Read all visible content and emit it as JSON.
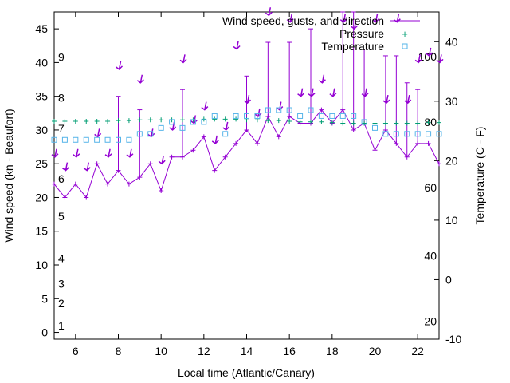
{
  "chart_data": {
    "type": "line",
    "title": "",
    "xlabel": "Local time (Atlantic/Canary)",
    "ylabel": "Wind speed (kn - Beaufort)",
    "y2label": "Temperature (C - F)",
    "xlim": [
      5,
      23
    ],
    "ylim": [
      -1,
      47.5
    ],
    "y2lim": [
      -10,
      45
    ],
    "x_ticks": [
      "6",
      "8",
      "10",
      "12",
      "14",
      "16",
      "18",
      "20",
      "22"
    ],
    "y_ticks": [
      "0",
      "5",
      "10",
      "15",
      "20",
      "25",
      "30",
      "35",
      "40",
      "45"
    ],
    "y2_ticks": [
      "-10",
      "0",
      "10",
      "20",
      "30",
      "40"
    ],
    "beaufort_labels": [
      {
        "text": "1",
        "y": 1
      },
      {
        "text": "2",
        "y": 4.3
      },
      {
        "text": "3",
        "y": 7.2
      },
      {
        "text": "4",
        "y": 11
      },
      {
        "text": "5",
        "y": 17.2
      },
      {
        "text": "6",
        "y": 22.8
      },
      {
        "text": "7",
        "y": 30.2
      },
      {
        "text": "8",
        "y": 34.8
      },
      {
        "text": "9",
        "y": 40.8
      }
    ],
    "fahrenheit_labels": [
      {
        "text": "20",
        "y": -7
      },
      {
        "text": "40",
        "y": 4
      },
      {
        "text": "60",
        "y": 15.5
      },
      {
        "text": "80",
        "y": 26.5
      },
      {
        "text": "100",
        "y": 37.5
      }
    ],
    "legend": {
      "position": "top-right",
      "entries": [
        "Wind speed, gusts, and direction",
        "Pressure",
        "Temperature"
      ]
    },
    "colors": {
      "wind": "#9400d3",
      "pressure": "#009e73",
      "temperature": "#56b4e9"
    },
    "series": [
      {
        "name": "Wind speed, gusts, and direction",
        "x": [
          5,
          5.5,
          6,
          6.5,
          7,
          7.5,
          8,
          8.5,
          9,
          9.5,
          10,
          10.5,
          11,
          11.5,
          12,
          12.5,
          13,
          13.5,
          14,
          14.5,
          15,
          15.5,
          16,
          16.5,
          17,
          17.5,
          18,
          18.5,
          19,
          19.5,
          20,
          20.5,
          21,
          21.5,
          22,
          22.5,
          23
        ],
        "values": [
          22,
          20,
          22,
          20,
          25,
          22,
          24,
          22,
          23,
          25,
          21,
          26,
          26,
          27,
          29,
          24,
          26,
          28,
          30,
          28,
          32,
          29,
          32,
          31,
          31,
          33,
          31,
          33,
          30,
          31,
          27,
          30,
          28,
          26,
          28,
          28,
          25
        ],
        "gusts": [
          null,
          null,
          null,
          null,
          null,
          null,
          35,
          null,
          33,
          null,
          null,
          null,
          36,
          null,
          null,
          null,
          null,
          null,
          38,
          null,
          43,
          null,
          43,
          null,
          45,
          null,
          null,
          48,
          48,
          42,
          42,
          41,
          41,
          37,
          36,
          null,
          null
        ],
        "direction_labels_x": [
          5,
          5.5,
          6,
          6.5,
          7,
          7.5,
          8,
          8.5,
          9,
          9.5,
          10,
          10.5,
          11,
          11.5,
          12,
          12.5,
          13,
          13.5,
          14,
          14.5,
          15,
          15.5,
          16,
          16.5,
          17,
          17.5,
          18,
          18.5,
          19,
          19.5,
          20,
          20.5,
          21,
          21.5,
          22,
          22.5,
          23
        ],
        "direction_y": [
          26,
          24,
          26,
          24,
          29,
          26,
          39,
          26,
          37,
          29,
          25,
          30,
          40,
          31,
          33,
          28,
          30,
          42,
          34,
          32,
          47,
          33,
          46,
          35,
          35,
          37,
          35,
          46,
          45,
          35,
          46,
          34,
          46,
          34,
          40,
          41,
          40
        ]
      },
      {
        "name": "Pressure",
        "x": [
          5,
          5.5,
          6,
          6.5,
          7,
          7.5,
          8,
          8.5,
          9,
          9.5,
          10,
          10.5,
          11,
          11.5,
          12,
          12.5,
          13,
          13.5,
          14,
          14.5,
          15,
          15.5,
          16,
          16.5,
          17,
          17.5,
          18,
          18.5,
          19,
          19.5,
          20,
          20.5,
          21,
          21.5,
          22,
          22.5,
          23
        ],
        "values": [
          31.3,
          31.3,
          31.3,
          31.3,
          31.3,
          31.3,
          31.4,
          31.4,
          31.5,
          31.5,
          31.5,
          31.5,
          31.5,
          31.5,
          31.6,
          31.6,
          31.6,
          31.6,
          31.5,
          31.5,
          31.4,
          31.4,
          31.3,
          31.2,
          31.2,
          31.2,
          31.1,
          31.0,
          31.0,
          31.0,
          31.0,
          31.0,
          31.0,
          31.0,
          31.0,
          31.1,
          31.1
        ]
      },
      {
        "name": "Temperature",
        "x": [
          5,
          5.5,
          6,
          6.5,
          7,
          7.5,
          8,
          8.5,
          9,
          9.5,
          10,
          10.5,
          11,
          11.5,
          12,
          12.5,
          13,
          13.5,
          14,
          14.5,
          15,
          15.5,
          16,
          16.5,
          17,
          17.5,
          18,
          18.5,
          19,
          19.5,
          20,
          20.5,
          21,
          21.5,
          22,
          22.5,
          23
        ],
        "values": [
          23.5,
          23.5,
          23.5,
          23.5,
          23.5,
          23.5,
          23.5,
          23.5,
          24.5,
          24.5,
          25.5,
          26.5,
          25.5,
          26.5,
          26.5,
          27.5,
          24.5,
          27.5,
          27.5,
          27.5,
          28.5,
          28.5,
          28.5,
          27.5,
          28.5,
          27.5,
          27.5,
          27.5,
          27.5,
          26.5,
          25.5,
          24.5,
          24.5,
          24.5,
          24.5,
          24.5,
          24.5
        ]
      }
    ]
  }
}
